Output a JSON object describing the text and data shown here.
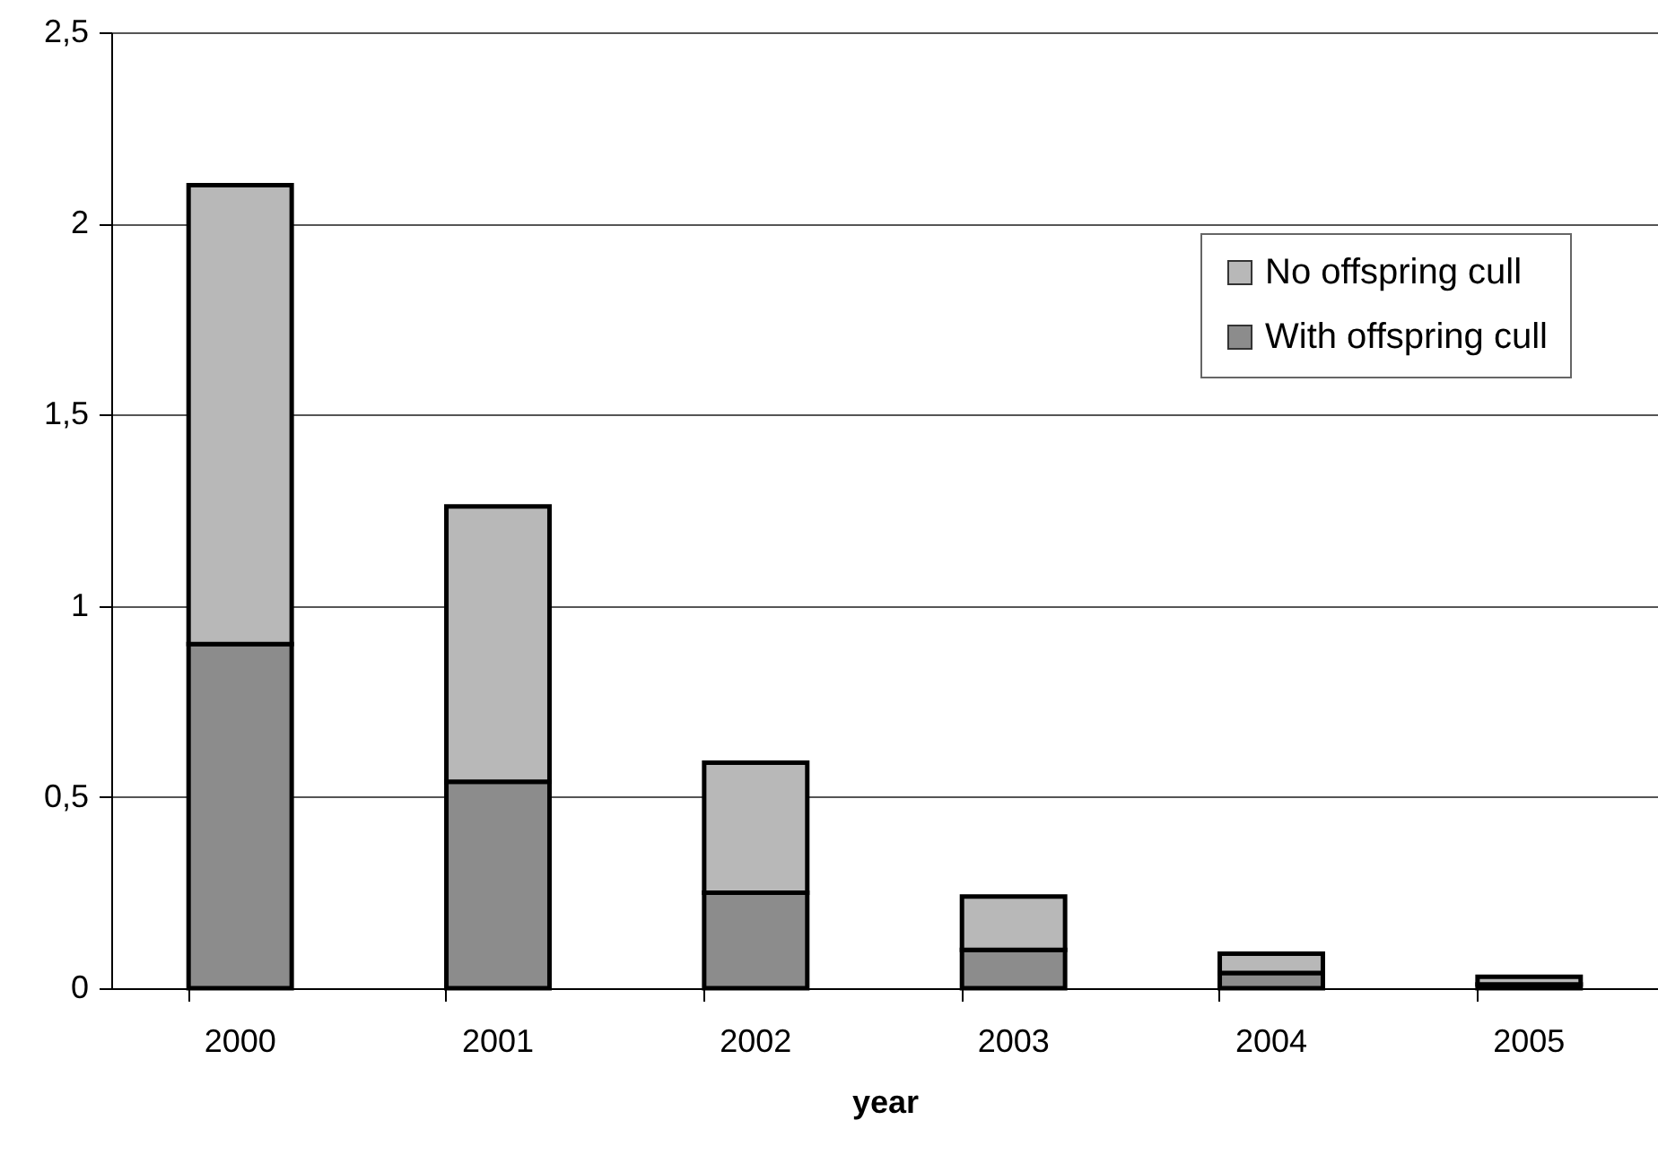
{
  "chart_data": {
    "type": "bar",
    "xlabel": "year",
    "categories": [
      "2000",
      "2001",
      "2002",
      "2003",
      "2004",
      "2005"
    ],
    "stacked": true,
    "series": [
      {
        "name": "With offspring cull",
        "color": "#8c8c8c",
        "values": [
          0.9,
          0.54,
          0.25,
          0.1,
          0.04,
          0.01
        ]
      },
      {
        "name": "No offspring cull",
        "color": "#b8b8b8",
        "values": [
          1.2,
          0.72,
          0.34,
          0.14,
          0.05,
          0.02
        ]
      }
    ],
    "ylim": [
      0,
      2.5
    ],
    "yticks": [
      0,
      {
        "value": 0.5,
        "label": "0,5"
      },
      1,
      {
        "value": 1.5,
        "label": "1,5"
      },
      2,
      {
        "value": 2.5,
        "label": "2,5"
      }
    ],
    "grid": "y",
    "legend": "top right"
  }
}
